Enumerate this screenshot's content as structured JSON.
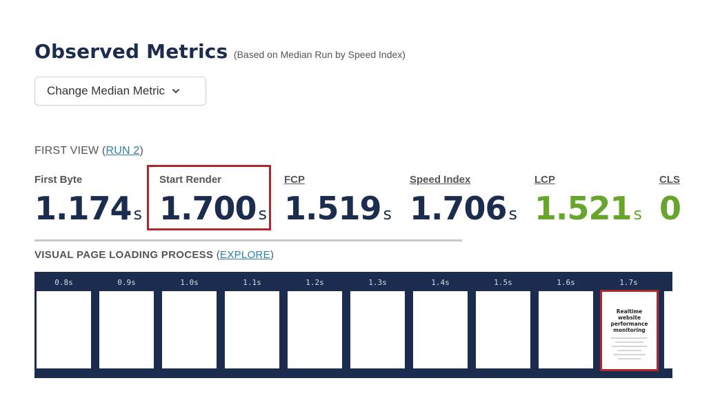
{
  "header": {
    "title": "Observed Metrics",
    "subtitle": "(Based on Median Run by Speed Index)"
  },
  "median_button": {
    "label": "Change Median Metric"
  },
  "first_view": {
    "prefix": "FIRST VIEW (",
    "run_link": "RUN 2",
    "suffix": ")"
  },
  "metrics": [
    {
      "label": "First Byte",
      "value": "1.174",
      "unit": "s"
    },
    {
      "label": "Start Render",
      "value": "1.700",
      "unit": "s"
    },
    {
      "label": "FCP",
      "value": "1.519",
      "unit": "s"
    },
    {
      "label": "Speed Index",
      "value": "1.706",
      "unit": "s"
    },
    {
      "label": "LCP",
      "value": "1.521",
      "unit": "s"
    },
    {
      "label": "CLS",
      "value": "0"
    }
  ],
  "visual_loading": {
    "label": "VISUAL PAGE LOADING PROCESS",
    "open": " (",
    "explore_link": "EXPLORE",
    "close": ")"
  },
  "filmstrip": {
    "frames": [
      "0.8s",
      "0.9s",
      "1.0s",
      "1.1s",
      "1.2s",
      "1.3s",
      "1.4s",
      "1.5s",
      "1.6s",
      "1.7s"
    ],
    "thumbnail_text": "Realtime website performance monitoring"
  },
  "colors": {
    "navy": "#1c2c4e",
    "good_green": "#68a52c",
    "highlight_red": "#b0262b",
    "link_blue": "#2f7ea8"
  },
  "icons": {
    "dropdown": "chevron-down-icon"
  }
}
